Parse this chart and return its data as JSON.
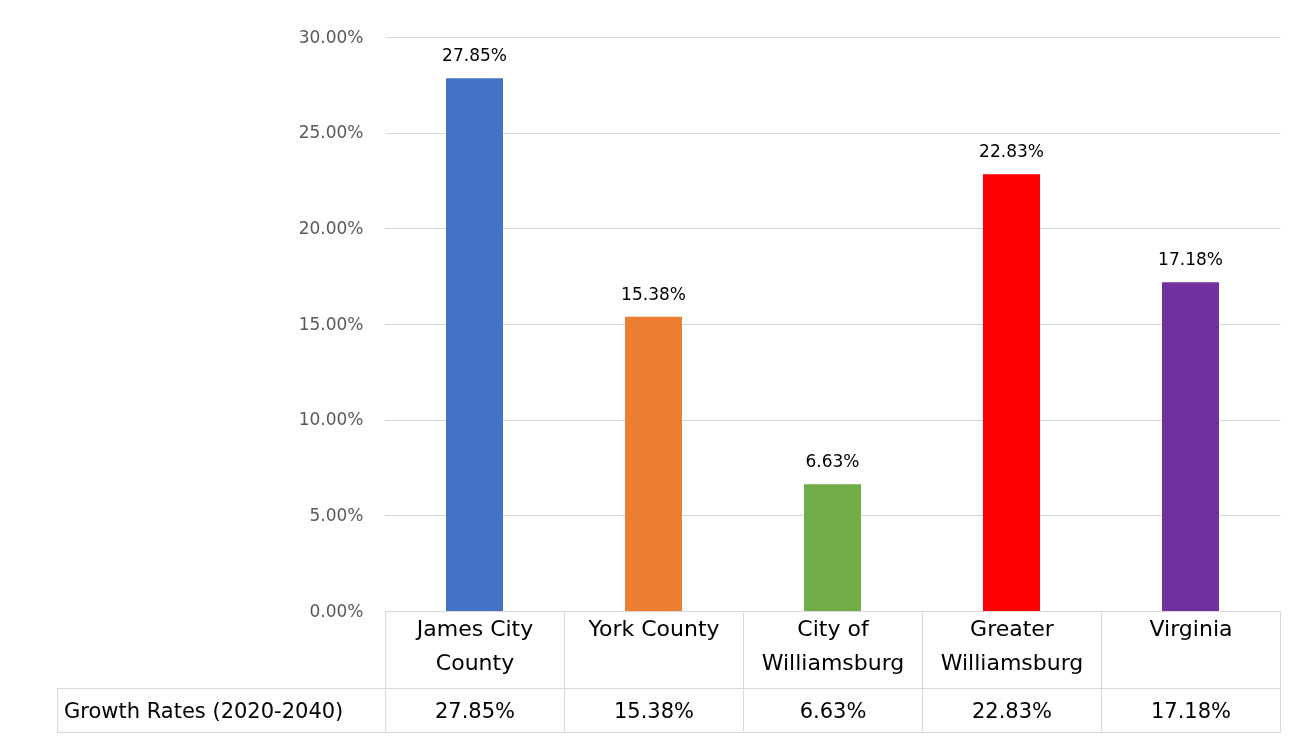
{
  "chart_data": {
    "type": "bar",
    "categories": [
      "James City County",
      "York County",
      "City of Williamsburg",
      "Greater Williamsburg",
      "Virginia"
    ],
    "series": [
      {
        "name": "Growth Rates (2020-2040)",
        "colors": [
          "#4472c4",
          "#ed7d31",
          "#70ad47",
          "#ff0000",
          "#7030a0"
        ],
        "values": [
          27.85,
          15.38,
          6.63,
          22.83,
          17.18
        ],
        "value_labels": [
          "27.85%",
          "15.38%",
          "6.63%",
          "22.83%",
          "17.18%"
        ]
      }
    ],
    "ylim": [
      0,
      30
    ],
    "yticks": [
      {
        "value": 0,
        "label": "0.00%"
      },
      {
        "value": 5,
        "label": "5.00%"
      },
      {
        "value": 10,
        "label": "10.00%"
      },
      {
        "value": 15,
        "label": "15.00%"
      },
      {
        "value": 20,
        "label": "20.00%"
      },
      {
        "value": 25,
        "label": "25.00%"
      },
      {
        "value": 30,
        "label": "30.00%"
      }
    ],
    "grid": "y"
  }
}
